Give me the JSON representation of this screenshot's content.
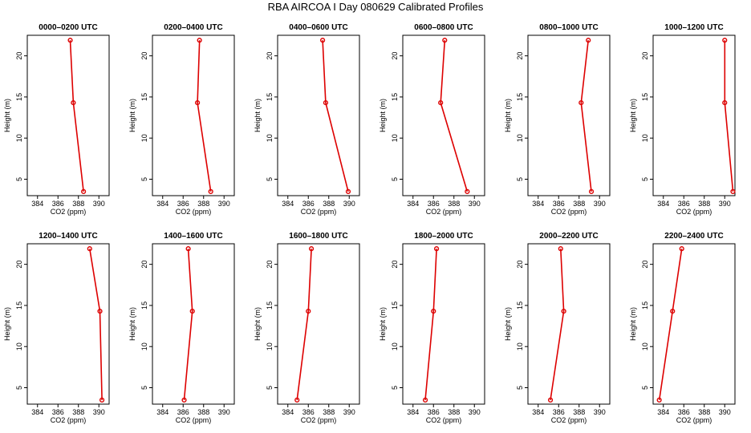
{
  "main_title": "RBA AIRCOA I  Day 080629  Calibrated Profiles",
  "colors": {
    "series": "#dd0000",
    "axes": "#000000"
  },
  "chart_data": [
    {
      "type": "line",
      "title": "0000–0200 UTC",
      "xlabel": "CO2 (ppm)",
      "ylabel": "Height (m)",
      "x": [
        388.5,
        387.5,
        387.2
      ],
      "y": [
        3.5,
        14.3,
        21.9
      ],
      "xlim": [
        383.0,
        391.0
      ],
      "ylim": [
        3.0,
        22.5
      ],
      "xticks": [
        384,
        386,
        388,
        390
      ],
      "yticks": [
        5,
        10,
        15,
        20
      ],
      "grid": false,
      "legend": "none"
    },
    {
      "type": "line",
      "title": "0200–0400 UTC",
      "xlabel": "CO2 (ppm)",
      "ylabel": "Height (m)",
      "x": [
        388.7,
        387.4,
        387.6
      ],
      "y": [
        3.5,
        14.3,
        21.9
      ],
      "xlim": [
        383.0,
        391.0
      ],
      "ylim": [
        3.0,
        22.5
      ],
      "xticks": [
        384,
        386,
        388,
        390
      ],
      "yticks": [
        5,
        10,
        15,
        20
      ],
      "grid": false,
      "legend": "none"
    },
    {
      "type": "line",
      "title": "0400–0600 UTC",
      "xlabel": "CO2 (ppm)",
      "ylabel": "Height (m)",
      "x": [
        389.9,
        387.7,
        387.4
      ],
      "y": [
        3.5,
        14.3,
        21.9
      ],
      "xlim": [
        383.0,
        391.0
      ],
      "ylim": [
        3.0,
        22.5
      ],
      "xticks": [
        384,
        386,
        388,
        390
      ],
      "yticks": [
        5,
        10,
        15,
        20
      ],
      "grid": false,
      "legend": "none"
    },
    {
      "type": "line",
      "title": "0600–0800 UTC",
      "xlabel": "CO2 (ppm)",
      "ylabel": "Height (m)",
      "x": [
        389.3,
        386.7,
        387.1
      ],
      "y": [
        3.5,
        14.3,
        21.9
      ],
      "xlim": [
        383.0,
        391.0
      ],
      "ylim": [
        3.0,
        22.5
      ],
      "xticks": [
        384,
        386,
        388,
        390
      ],
      "yticks": [
        5,
        10,
        15,
        20
      ],
      "grid": false,
      "legend": "none"
    },
    {
      "type": "line",
      "title": "0800–1000 UTC",
      "xlabel": "CO2 (ppm)",
      "ylabel": "Height (m)",
      "x": [
        389.2,
        388.2,
        388.9
      ],
      "y": [
        3.5,
        14.3,
        21.9
      ],
      "xlim": [
        383.0,
        391.0
      ],
      "ylim": [
        3.0,
        22.5
      ],
      "xticks": [
        384,
        386,
        388,
        390
      ],
      "yticks": [
        5,
        10,
        15,
        20
      ],
      "grid": false,
      "legend": "none"
    },
    {
      "type": "line",
      "title": "1000–1200 UTC",
      "xlabel": "CO2 (ppm)",
      "ylabel": "Height (m)",
      "x": [
        390.8,
        390.0,
        390.0
      ],
      "y": [
        3.5,
        14.3,
        21.9
      ],
      "xlim": [
        383.0,
        391.0
      ],
      "ylim": [
        3.0,
        22.5
      ],
      "xticks": [
        384,
        386,
        388,
        390
      ],
      "yticks": [
        5,
        10,
        15,
        20
      ],
      "grid": false,
      "legend": "none"
    },
    {
      "type": "line",
      "title": "1200–1400 UTC",
      "xlabel": "CO2 (ppm)",
      "ylabel": "Height (m)",
      "x": [
        390.3,
        390.1,
        389.1
      ],
      "y": [
        3.5,
        14.3,
        21.9
      ],
      "xlim": [
        383.0,
        391.0
      ],
      "ylim": [
        3.0,
        22.5
      ],
      "xticks": [
        384,
        386,
        388,
        390
      ],
      "yticks": [
        5,
        10,
        15,
        20
      ],
      "grid": false,
      "legend": "none"
    },
    {
      "type": "line",
      "title": "1400–1600 UTC",
      "xlabel": "CO2 (ppm)",
      "ylabel": "Height (m)",
      "x": [
        386.1,
        386.9,
        386.5
      ],
      "y": [
        3.5,
        14.3,
        21.9
      ],
      "xlim": [
        383.0,
        391.0
      ],
      "ylim": [
        3.0,
        22.5
      ],
      "xticks": [
        384,
        386,
        388,
        390
      ],
      "yticks": [
        5,
        10,
        15,
        20
      ],
      "grid": false,
      "legend": "none"
    },
    {
      "type": "line",
      "title": "1600–1800 UTC",
      "xlabel": "CO2 (ppm)",
      "ylabel": "Height (m)",
      "x": [
        384.9,
        386.0,
        386.3
      ],
      "y": [
        3.5,
        14.3,
        21.9
      ],
      "xlim": [
        383.0,
        391.0
      ],
      "ylim": [
        3.0,
        22.5
      ],
      "xticks": [
        384,
        386,
        388,
        390
      ],
      "yticks": [
        5,
        10,
        15,
        20
      ],
      "grid": false,
      "legend": "none"
    },
    {
      "type": "line",
      "title": "1800–2000 UTC",
      "xlabel": "CO2 (ppm)",
      "ylabel": "Height (m)",
      "x": [
        385.2,
        386.0,
        386.3
      ],
      "y": [
        3.5,
        14.3,
        21.9
      ],
      "xlim": [
        383.0,
        391.0
      ],
      "ylim": [
        3.0,
        22.5
      ],
      "xticks": [
        384,
        386,
        388,
        390
      ],
      "yticks": [
        5,
        10,
        15,
        20
      ],
      "grid": false,
      "legend": "none"
    },
    {
      "type": "line",
      "title": "2000–2200 UTC",
      "xlabel": "CO2 (ppm)",
      "ylabel": "Height (m)",
      "x": [
        385.2,
        386.5,
        386.2
      ],
      "y": [
        3.5,
        14.3,
        21.9
      ],
      "xlim": [
        383.0,
        391.0
      ],
      "ylim": [
        3.0,
        22.5
      ],
      "xticks": [
        384,
        386,
        388,
        390
      ],
      "yticks": [
        5,
        10,
        15,
        20
      ],
      "grid": false,
      "legend": "none"
    },
    {
      "type": "line",
      "title": "2200–2400 UTC",
      "xlabel": "CO2 (ppm)",
      "ylabel": "Height (m)",
      "x": [
        383.6,
        384.9,
        385.8
      ],
      "y": [
        3.5,
        14.3,
        21.9
      ],
      "xlim": [
        383.0,
        391.0
      ],
      "ylim": [
        3.0,
        22.5
      ],
      "xticks": [
        384,
        386,
        388,
        390
      ],
      "yticks": [
        5,
        10,
        15,
        20
      ],
      "grid": false,
      "legend": "none"
    }
  ]
}
